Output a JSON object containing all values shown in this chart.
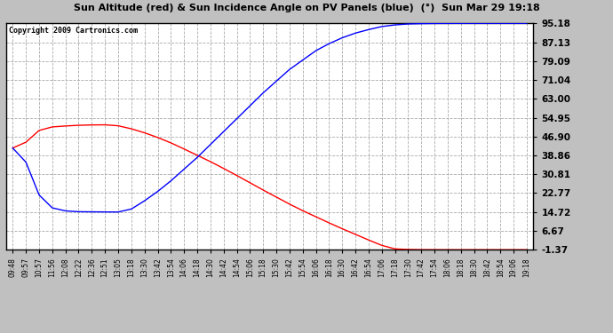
{
  "title": "Sun Altitude (red) & Sun Incidence Angle on PV Panels (blue)  (°)  Sun Mar 29 19:18",
  "copyright": "Copyright 2009 Cartronics.com",
  "y_ticks": [
    -1.37,
    6.67,
    14.72,
    22.77,
    30.81,
    38.86,
    46.9,
    54.95,
    63.0,
    71.04,
    79.09,
    87.13,
    95.18
  ],
  "y_tick_labels": [
    "-1.37",
    "6.67",
    "14.72",
    "22.77",
    "30.81",
    "38.86",
    "46.90",
    "54.95",
    "63.00",
    "71.04",
    "79.09",
    "87.13",
    "95.18"
  ],
  "x_tick_labels": [
    "09:48",
    "09:57",
    "10:57",
    "11:56",
    "12:08",
    "12:22",
    "12:36",
    "12:51",
    "13:05",
    "13:18",
    "13:30",
    "13:42",
    "13:54",
    "14:06",
    "14:18",
    "14:30",
    "14:42",
    "14:54",
    "15:06",
    "15:18",
    "15:30",
    "15:42",
    "15:54",
    "16:06",
    "16:18",
    "16:30",
    "16:42",
    "16:54",
    "17:06",
    "17:18",
    "17:30",
    "17:42",
    "17:54",
    "18:06",
    "18:18",
    "18:30",
    "18:42",
    "18:54",
    "19:06",
    "19:18"
  ],
  "red_y": [
    42.0,
    44.5,
    49.5,
    51.0,
    51.4,
    51.7,
    51.85,
    51.9,
    51.5,
    50.2,
    48.5,
    46.5,
    44.2,
    41.6,
    38.9,
    36.2,
    33.3,
    30.3,
    27.2,
    24.1,
    21.1,
    18.1,
    15.3,
    12.7,
    10.1,
    7.6,
    5.2,
    2.8,
    0.5,
    -1.0,
    -1.25,
    -1.33,
    -1.36,
    -1.37,
    -1.37,
    -1.37,
    -1.37,
    -1.37,
    -1.37,
    -1.37
  ],
  "blue_y": [
    42.0,
    36.0,
    22.0,
    16.5,
    15.2,
    14.85,
    14.8,
    14.75,
    14.72,
    16.0,
    19.5,
    23.5,
    28.0,
    33.0,
    38.0,
    43.5,
    49.0,
    54.5,
    60.0,
    65.5,
    70.5,
    75.5,
    79.5,
    83.5,
    86.5,
    89.0,
    91.0,
    92.5,
    93.8,
    94.5,
    94.9,
    95.05,
    95.12,
    95.15,
    95.17,
    95.18,
    95.18,
    95.18,
    95.18,
    95.18
  ],
  "fig_width": 6.9,
  "fig_height": 3.75,
  "dpi": 100
}
